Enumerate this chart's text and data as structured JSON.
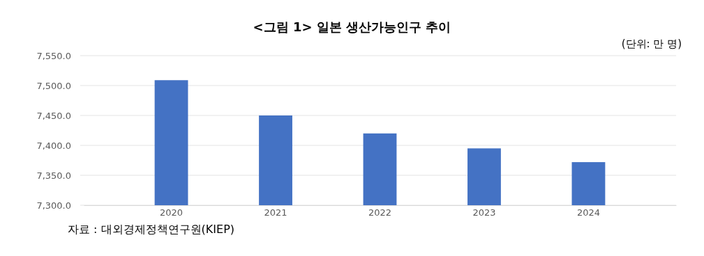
{
  "chart_data": {
    "type": "bar",
    "title": "<그림 1> 일본 생산가능인구 추이",
    "categories": [
      "2020",
      "2021",
      "2022",
      "2023",
      "2024"
    ],
    "values": [
      7509,
      7450,
      7420,
      7395,
      7372
    ],
    "color": "#4472c4",
    "ylim": [
      7300,
      7550
    ],
    "yticks": [
      {
        "value": 7300,
        "label": "7,300.0"
      },
      {
        "value": 7350,
        "label": "7,350.0"
      },
      {
        "value": 7400,
        "label": "7,400.0"
      },
      {
        "value": 7450,
        "label": "7,450.0"
      },
      {
        "value": 7500,
        "label": "7,500.0"
      },
      {
        "value": 7550,
        "label": "7,550.0"
      }
    ],
    "grid": "y",
    "annotations": [
      "(단위: 만 명)",
      "자료 : 대외경제정책연구원(KIEP)"
    ]
  }
}
